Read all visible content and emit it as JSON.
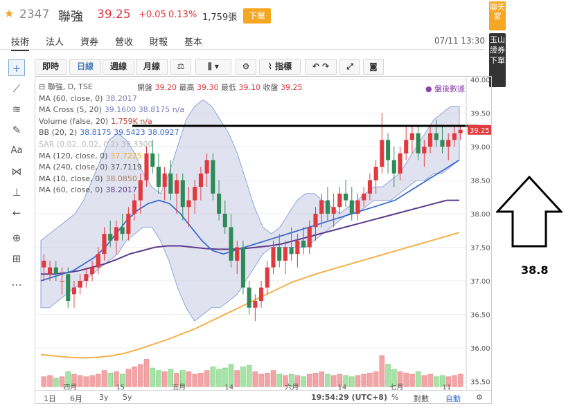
{
  "header": {
    "star_icon": "star-icon",
    "code": "2347",
    "name": "聯強",
    "price": "39.25",
    "change": "+0.05",
    "change_pct": "0.13%",
    "volume": "1,759張",
    "trade_button": "下單"
  },
  "tabs": [
    "技術",
    "法人",
    "資券",
    "營收",
    "財報",
    "基本"
  ],
  "datetime": "07/11 13:30",
  "side": {
    "chat": "聊天室",
    "broker": "玉山證券下單"
  },
  "toolbar": {
    "intraday": "即時",
    "daily": "日線",
    "weekly": "週線",
    "monthly": "月線",
    "indicators": "指標"
  },
  "legend": {
    "symbol": "聯強, D, TSE",
    "ohlc": {
      "open_label": "開盤",
      "open": "39.20",
      "high_label": "最高",
      "high": "39.30",
      "low_label": "最低",
      "low": "39.10",
      "close_label": "收盤",
      "close": "39.25"
    },
    "after_hours": "盤後數據",
    "rows": [
      {
        "label": "MA (60, close, 0)",
        "value": "38.2017"
      },
      {
        "label": "MA Cross (5, 20)",
        "value": "39.1600  38.8175  n/a"
      },
      {
        "label": "Volume (false, 20)",
        "value": "1,759K  n/a"
      },
      {
        "label": "BB (20, 2)",
        "value": "38.8175  39.5423  38.0927"
      },
      {
        "label": "SAR (0.02, 0.02, 0.2)",
        "value": "39.3300"
      },
      {
        "label": "MA (120, close, 0)",
        "value": "37.7225"
      },
      {
        "label": "MA (240, close, 0)",
        "value": "37.7119"
      },
      {
        "label": "MA (10, close, 0)",
        "value": "38.0850"
      },
      {
        "label": "MA (60, close, 0)",
        "value": "38.2017"
      }
    ]
  },
  "price_axis": {
    "ticks": [
      "40.00",
      "39.50",
      "39.00",
      "38.50",
      "38.00",
      "37.50",
      "37.00",
      "36.50",
      "36.00",
      "35.50"
    ],
    "last_label": "39.25"
  },
  "time_axis": [
    "四月",
    "15",
    "五月",
    "14",
    "六月",
    "14",
    "七月",
    "11"
  ],
  "bottombar": {
    "ranges": [
      "1日",
      "6月",
      "3y",
      "5y"
    ],
    "clock": "19:54:29 (UTC+8)",
    "pct": "%",
    "log": "對數",
    "auto": "自動"
  },
  "annotation": {
    "value": "38.8"
  },
  "colors": {
    "up": "#e0393e",
    "down": "#2e8b57",
    "bb_fill": "#c8cbe3",
    "ma_blue": "#3a6bd1",
    "ma_purple": "#5b3a8c",
    "ma_orange": "#f5b04a",
    "ma_brown": "#b08060",
    "accent": "#f5a623"
  },
  "chart_data": {
    "type": "candlestick",
    "ylim": [
      35.5,
      40.0
    ],
    "candles": [
      [
        37.2,
        37.4,
        37.0,
        37.3
      ],
      [
        37.1,
        37.3,
        37.0,
        37.2
      ],
      [
        37.2,
        37.3,
        37.0,
        37.1
      ],
      [
        37.0,
        37.2,
        36.8,
        37.0
      ],
      [
        37.1,
        37.2,
        36.6,
        36.7
      ],
      [
        36.8,
        37.0,
        36.6,
        36.9
      ],
      [
        36.9,
        37.1,
        36.8,
        37.0
      ],
      [
        37.0,
        37.2,
        36.9,
        37.1
      ],
      [
        37.1,
        37.3,
        37.0,
        37.2
      ],
      [
        37.2,
        37.5,
        37.1,
        37.4
      ],
      [
        37.4,
        37.8,
        37.3,
        37.7
      ],
      [
        37.7,
        37.9,
        37.5,
        37.6
      ],
      [
        37.6,
        37.9,
        37.4,
        37.8
      ],
      [
        37.8,
        38.0,
        37.6,
        37.7
      ],
      [
        37.7,
        38.1,
        37.6,
        38.0
      ],
      [
        38.0,
        38.3,
        37.9,
        38.2
      ],
      [
        38.2,
        38.6,
        38.0,
        38.5
      ],
      [
        38.5,
        39.0,
        38.4,
        38.9
      ],
      [
        38.9,
        39.1,
        38.6,
        38.7
      ],
      [
        38.7,
        38.9,
        38.3,
        38.4
      ],
      [
        38.4,
        38.7,
        38.2,
        38.6
      ],
      [
        38.6,
        38.8,
        38.2,
        38.3
      ],
      [
        38.3,
        38.6,
        38.0,
        38.5
      ],
      [
        38.5,
        38.6,
        37.9,
        38.1
      ],
      [
        38.1,
        38.4,
        37.8,
        38.2
      ],
      [
        38.2,
        38.5,
        38.0,
        38.4
      ],
      [
        38.4,
        38.7,
        38.2,
        38.6
      ],
      [
        38.6,
        38.9,
        38.4,
        38.8
      ],
      [
        38.8,
        38.9,
        38.2,
        38.3
      ],
      [
        38.3,
        38.5,
        37.9,
        38.0
      ],
      [
        38.0,
        38.2,
        37.7,
        37.8
      ],
      [
        37.8,
        38.0,
        37.2,
        37.3
      ],
      [
        37.3,
        37.6,
        37.1,
        37.5
      ],
      [
        37.5,
        37.6,
        36.8,
        36.9
      ],
      [
        36.9,
        37.0,
        36.5,
        36.6
      ],
      [
        36.6,
        36.8,
        36.4,
        36.7
      ],
      [
        36.7,
        37.0,
        36.6,
        36.9
      ],
      [
        36.9,
        37.3,
        36.8,
        37.2
      ],
      [
        37.2,
        37.6,
        37.1,
        37.5
      ],
      [
        37.5,
        37.7,
        37.2,
        37.3
      ],
      [
        37.3,
        37.6,
        37.1,
        37.5
      ],
      [
        37.5,
        37.8,
        37.3,
        37.4
      ],
      [
        37.4,
        37.7,
        37.2,
        37.6
      ],
      [
        37.6,
        37.8,
        37.4,
        37.5
      ],
      [
        37.5,
        37.9,
        37.4,
        37.8
      ],
      [
        37.8,
        38.1,
        37.6,
        38.0
      ],
      [
        38.0,
        38.3,
        37.8,
        38.2
      ],
      [
        38.2,
        38.4,
        37.9,
        38.0
      ],
      [
        38.0,
        38.3,
        37.8,
        38.1
      ],
      [
        38.1,
        38.4,
        38.0,
        38.3
      ],
      [
        38.3,
        38.5,
        38.1,
        38.2
      ],
      [
        38.2,
        38.4,
        37.9,
        38.0
      ],
      [
        38.0,
        38.3,
        37.9,
        38.2
      ],
      [
        38.2,
        38.4,
        38.1,
        38.3
      ],
      [
        38.3,
        38.6,
        38.2,
        38.5
      ],
      [
        38.5,
        38.8,
        38.3,
        38.7
      ],
      [
        38.7,
        39.5,
        38.6,
        39.1
      ],
      [
        39.1,
        39.2,
        38.6,
        38.8
      ],
      [
        38.8,
        39.0,
        38.4,
        38.6
      ],
      [
        38.6,
        39.0,
        38.5,
        38.9
      ],
      [
        38.9,
        39.3,
        38.8,
        39.1
      ],
      [
        39.1,
        39.3,
        38.9,
        39.2
      ],
      [
        39.2,
        39.3,
        38.8,
        38.9
      ],
      [
        38.9,
        39.1,
        38.7,
        39.0
      ],
      [
        39.0,
        39.3,
        38.9,
        39.2
      ],
      [
        39.2,
        39.4,
        39.0,
        39.1
      ],
      [
        39.1,
        39.3,
        38.9,
        39.0
      ],
      [
        39.0,
        39.2,
        38.8,
        39.1
      ],
      [
        39.1,
        39.3,
        39.0,
        39.2
      ],
      [
        39.2,
        39.3,
        39.1,
        39.25
      ]
    ],
    "volumes": [
      0.8,
      0.9,
      0.7,
      0.8,
      1.2,
      1.0,
      0.9,
      0.8,
      0.9,
      1.0,
      1.3,
      1.1,
      1.2,
      1.0,
      1.4,
      1.6,
      1.8,
      2.2,
      1.5,
      1.3,
      1.2,
      1.4,
      1.1,
      1.3,
      1.2,
      1.0,
      1.1,
      1.3,
      1.6,
      1.4,
      1.5,
      1.8,
      1.3,
      1.6,
      1.7,
      1.2,
      1.0,
      1.1,
      1.3,
      1.0,
      0.9,
      1.0,
      0.9,
      0.8,
      1.0,
      1.1,
      1.2,
      1.0,
      0.9,
      1.0,
      0.9,
      0.8,
      0.9,
      1.0,
      1.1,
      1.2,
      2.5,
      1.8,
      1.4,
      1.2,
      1.1,
      1.0,
      1.2,
      0.9,
      1.0,
      0.8,
      0.9,
      0.8,
      0.9,
      1.0
    ],
    "bb_upper": [
      37.6,
      37.7,
      37.8,
      37.9,
      38.0,
      38.2,
      38.5,
      38.8,
      39.1,
      39.2,
      39.1,
      38.9,
      38.6,
      38.4,
      38.3,
      38.6,
      39.0,
      39.4,
      39.6,
      39.7,
      39.6,
      39.4,
      39.2,
      38.9,
      38.5,
      38.1,
      37.8,
      37.7,
      37.8,
      38.0,
      38.2,
      38.3,
      38.3,
      38.2,
      38.1,
      38.0,
      38.1,
      38.2,
      38.3,
      38.4,
      38.4,
      38.5,
      38.6,
      38.8,
      39.0,
      39.2,
      39.4,
      39.5,
      39.6,
      39.6
    ],
    "bb_lower": [
      36.6,
      36.6,
      36.7,
      36.8,
      36.9,
      37.0,
      37.1,
      37.2,
      37.3,
      37.4,
      37.6,
      37.7,
      37.8,
      37.8,
      37.6,
      37.3,
      36.9,
      36.6,
      36.4,
      36.5,
      36.6,
      36.6,
      36.7,
      36.8,
      37.0,
      37.2,
      37.4,
      37.5,
      37.5,
      37.5,
      37.5,
      37.5,
      37.6,
      37.7,
      37.8,
      37.9,
      38.0,
      38.0,
      38.1,
      38.2,
      38.2,
      38.2,
      38.3,
      38.4,
      38.5,
      38.5,
      38.6,
      38.6,
      38.7,
      38.8
    ],
    "ma_blue": [
      37.0,
      37.05,
      37.1,
      37.15,
      37.25,
      37.35,
      37.5,
      37.7,
      37.9,
      38.05,
      38.15,
      38.2,
      38.15,
      38.0,
      37.8,
      37.6,
      37.45,
      37.4,
      37.45,
      37.5,
      37.55,
      37.6,
      37.65,
      37.7,
      37.75,
      37.8,
      37.85,
      37.9,
      37.95,
      38.0,
      38.05,
      38.1,
      38.15,
      38.2,
      38.3,
      38.4,
      38.5,
      38.6,
      38.7,
      38.8
    ],
    "ma_purple": [
      37.1,
      37.1,
      37.12,
      37.15,
      37.2,
      37.25,
      37.32,
      37.4,
      37.45,
      37.5,
      37.52,
      37.52,
      37.5,
      37.48,
      37.47,
      37.47,
      37.48,
      37.5,
      37.52,
      37.55,
      37.6,
      37.65,
      37.7,
      37.75,
      37.8,
      37.85,
      37.9,
      37.95,
      38.0,
      38.05,
      38.1,
      38.15,
      38.2,
      38.2
    ],
    "ma_orange": [
      35.9,
      35.88,
      35.86,
      35.85,
      35.86,
      35.88,
      35.92,
      35.98,
      36.05,
      36.12,
      36.2,
      36.28,
      36.38,
      36.48,
      36.58,
      36.68,
      36.78,
      36.88,
      36.98,
      37.05,
      37.12,
      37.18,
      37.24,
      37.3,
      37.36,
      37.42,
      37.48,
      37.54,
      37.6,
      37.66,
      37.72
    ]
  }
}
